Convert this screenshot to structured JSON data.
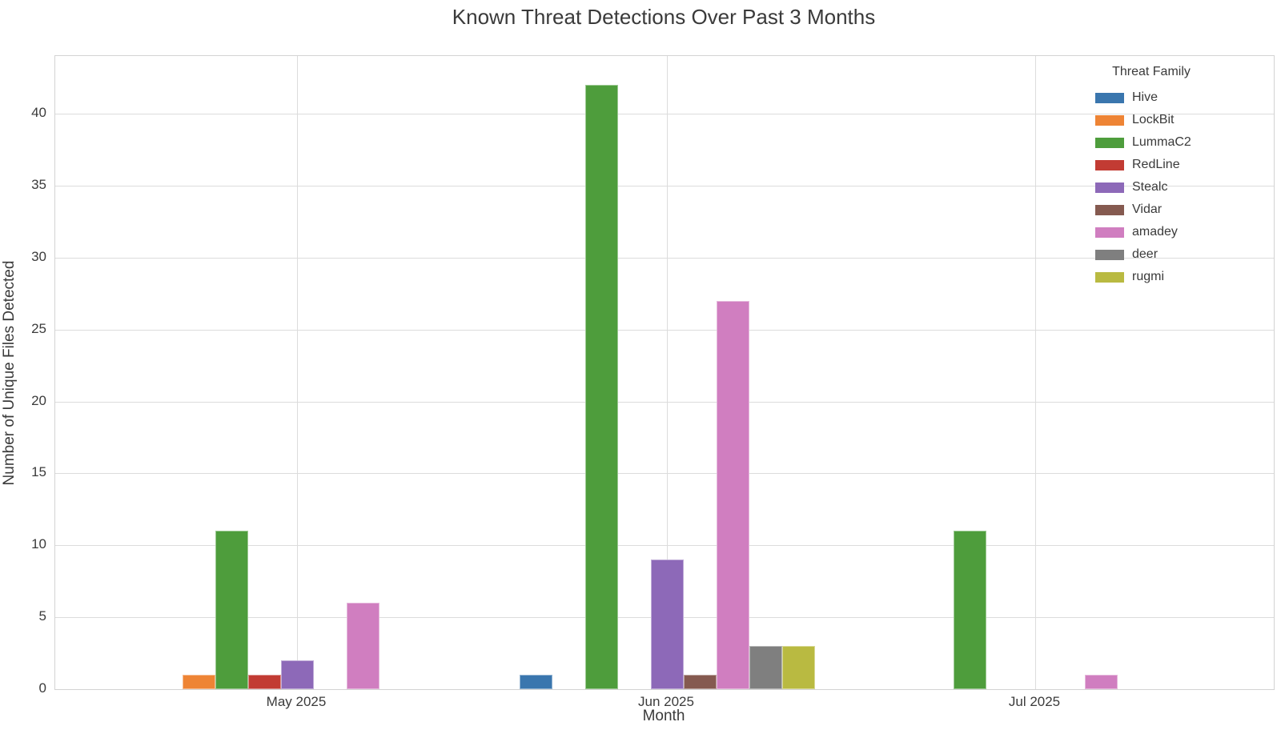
{
  "chart_data": {
    "type": "bar",
    "title": "Known Threat Detections Over Past 3 Months",
    "xlabel": "Month",
    "ylabel": "Number of Unique Files Detected",
    "legend_title": "Threat Family",
    "legend_position": "upper right",
    "grid": true,
    "categories": [
      "May 2025",
      "Jun 2025",
      "Jul 2025"
    ],
    "series": [
      {
        "name": "Hive",
        "color": "#3a76ae",
        "values": [
          0,
          1,
          0
        ]
      },
      {
        "name": "LockBit",
        "color": "#ee8435",
        "values": [
          1,
          0,
          0
        ]
      },
      {
        "name": "LummaC2",
        "color": "#4e9d3c",
        "values": [
          11,
          42,
          11
        ]
      },
      {
        "name": "RedLine",
        "color": "#c23b33",
        "values": [
          1,
          0,
          0
        ]
      },
      {
        "name": "Stealc",
        "color": "#8d69b8",
        "values": [
          2,
          9,
          0
        ]
      },
      {
        "name": "Vidar",
        "color": "#855a50",
        "values": [
          0,
          1,
          0
        ]
      },
      {
        "name": "amadey",
        "color": "#d07ec0",
        "values": [
          6,
          27,
          1
        ]
      },
      {
        "name": "deer",
        "color": "#7f7f7f",
        "values": [
          0,
          3,
          0
        ]
      },
      {
        "name": "rugmi",
        "color": "#b9ba41",
        "values": [
          0,
          3,
          0
        ]
      }
    ],
    "yticks": [
      0,
      5,
      10,
      15,
      20,
      25,
      30,
      35,
      40
    ],
    "ylim": [
      0,
      44
    ]
  }
}
